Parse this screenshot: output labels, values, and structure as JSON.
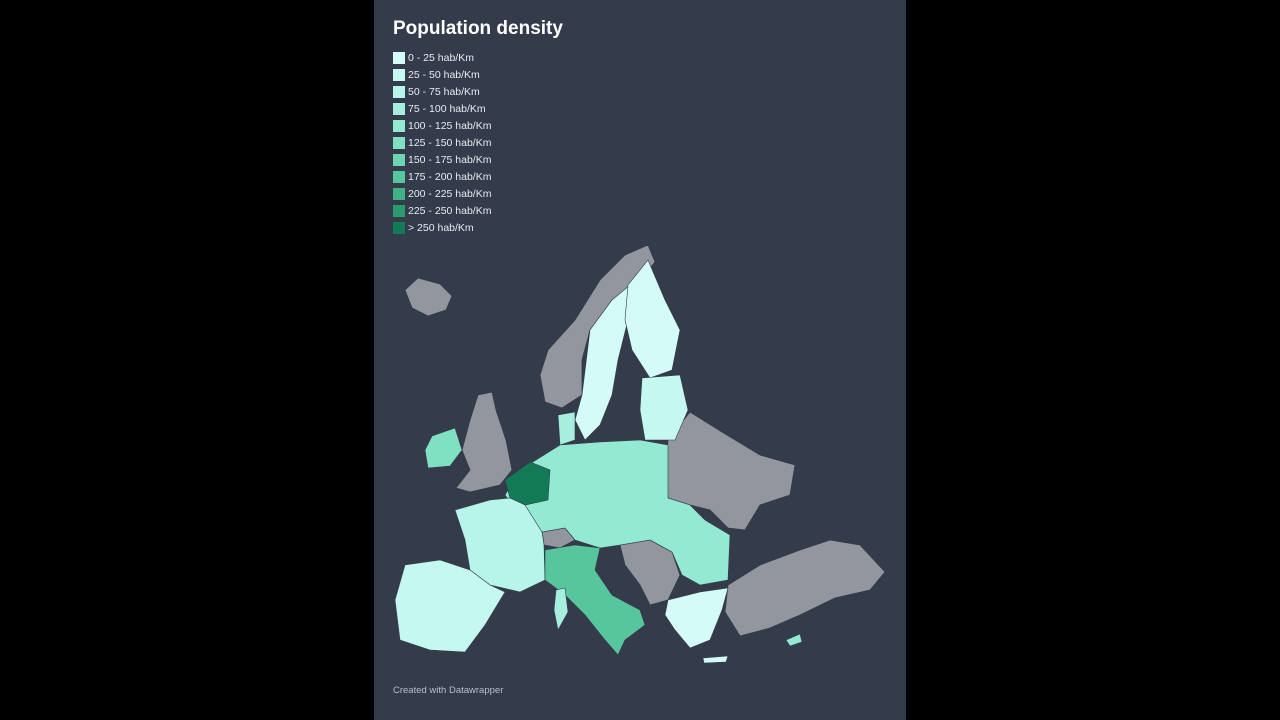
{
  "header": {
    "title": "Population density"
  },
  "legend": {
    "items": [
      {
        "label": "0 - 25 hab/Km",
        "color": "#d4fbf8"
      },
      {
        "label": "25 - 50 hab/Km",
        "color": "#c6f8f2"
      },
      {
        "label": "50 - 75 hab/Km",
        "color": "#b7f4ea"
      },
      {
        "label": "75 - 100 hab/Km",
        "color": "#a6efdf"
      },
      {
        "label": "100 - 125 hab/Km",
        "color": "#93e9d2"
      },
      {
        "label": "125 - 150 hab/Km",
        "color": "#80e0c2"
      },
      {
        "label": "150 - 175 hab/Km",
        "color": "#6dd5b1"
      },
      {
        "label": "175 - 200 hab/Km",
        "color": "#58c69c"
      },
      {
        "label": "200 - 225 hab/Km",
        "color": "#42b286"
      },
      {
        "label": "225 - 250 hab/Km",
        "color": "#2b9b6f"
      },
      {
        "label": "> 250 hab/Km",
        "color": "#137a56"
      }
    ]
  },
  "footer": {
    "credit": "Created with Datawrapper"
  }
}
